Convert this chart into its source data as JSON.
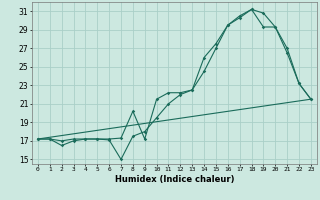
{
  "title": "",
  "xlabel": "Humidex (Indice chaleur)",
  "bg_color": "#cce8e0",
  "grid_color": "#aacfc8",
  "line_color": "#1a6b5a",
  "xlim": [
    -0.5,
    23.5
  ],
  "ylim": [
    14.5,
    32.0
  ],
  "xticks": [
    0,
    1,
    2,
    3,
    4,
    5,
    6,
    7,
    8,
    9,
    10,
    11,
    12,
    13,
    14,
    15,
    16,
    17,
    18,
    19,
    20,
    21,
    22,
    23
  ],
  "yticks": [
    15,
    17,
    19,
    21,
    23,
    25,
    27,
    29,
    31
  ],
  "line1_x": [
    0,
    1,
    2,
    3,
    4,
    5,
    6,
    7,
    8,
    9,
    10,
    11,
    12,
    13,
    14,
    15,
    16,
    17,
    18,
    19,
    20,
    21,
    22,
    23
  ],
  "line1_y": [
    17.2,
    17.2,
    16.5,
    17.0,
    17.2,
    17.2,
    17.1,
    15.0,
    17.5,
    18.0,
    19.5,
    21.0,
    22.0,
    22.5,
    24.5,
    27.0,
    29.5,
    30.3,
    31.2,
    30.8,
    29.3,
    26.5,
    23.2,
    21.5
  ],
  "line2_x": [
    0,
    1,
    2,
    3,
    4,
    5,
    6,
    7,
    8,
    9,
    10,
    11,
    12,
    13,
    14,
    15,
    16,
    17,
    18,
    19,
    20,
    21,
    22,
    23
  ],
  "line2_y": [
    17.2,
    17.2,
    17.0,
    17.2,
    17.2,
    17.2,
    17.2,
    17.3,
    20.2,
    17.2,
    21.5,
    22.2,
    22.2,
    22.5,
    26.0,
    27.5,
    29.5,
    30.5,
    31.2,
    29.3,
    29.3,
    27.0,
    23.2,
    21.5
  ],
  "line3_x": [
    0,
    23
  ],
  "line3_y": [
    17.2,
    21.5
  ]
}
